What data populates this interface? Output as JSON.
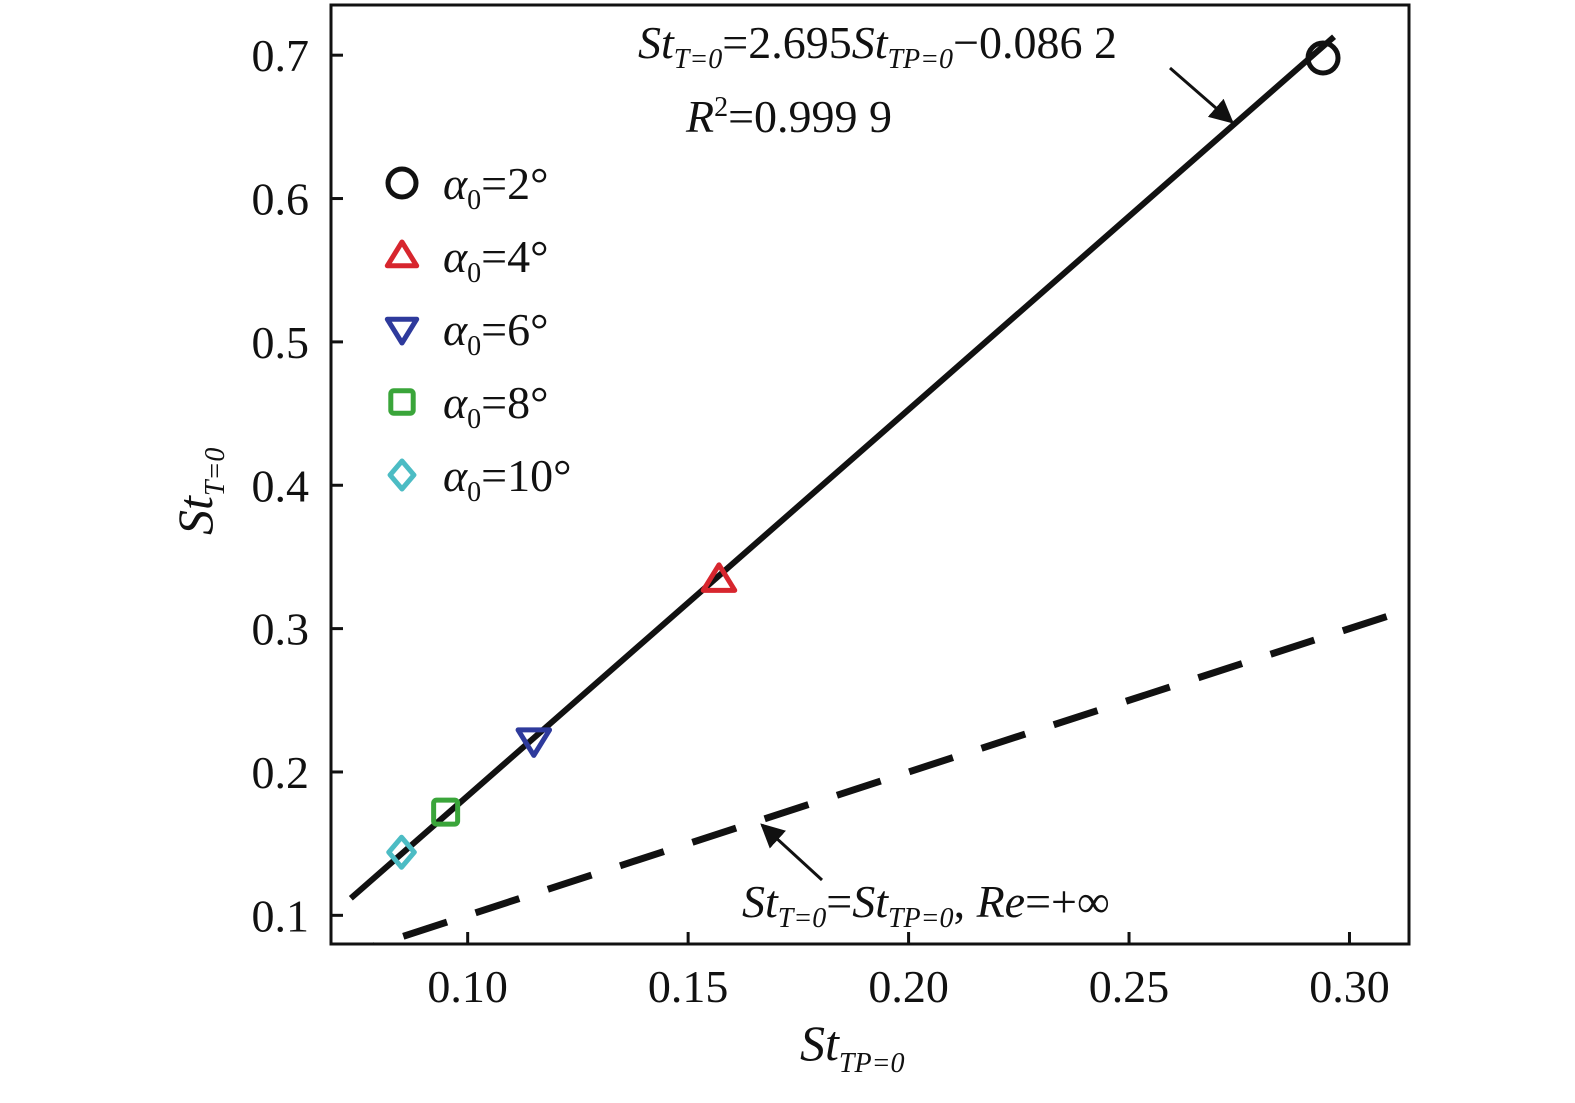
{
  "chart_data": {
    "type": "scatter",
    "x_axis": {
      "label_main": "St",
      "label_sub": "TP=0",
      "range": [
        0.069,
        0.3135
      ],
      "ticks": [
        0.1,
        0.15,
        0.2,
        0.25,
        0.3
      ],
      "tick_labels": [
        "0.10",
        "0.15",
        "0.20",
        "0.25",
        "0.30"
      ]
    },
    "y_axis": {
      "label_main": "St",
      "label_sub": "T=0",
      "range": [
        0.08,
        0.735
      ],
      "ticks": [
        0.1,
        0.2,
        0.3,
        0.4,
        0.5,
        0.6,
        0.7
      ],
      "tick_labels": [
        "0.1",
        "0.2",
        "0.3",
        "0.4",
        "0.5",
        "0.6",
        "0.7"
      ]
    },
    "grid": false,
    "legend_position": "upper-left",
    "series": [
      {
        "name_main": "α",
        "name_sub": "0",
        "name_rest": "=2°",
        "marker": "circle",
        "color": "#111111",
        "x": [
          0.294
        ],
        "y": [
          0.698
        ]
      },
      {
        "name_main": "α",
        "name_sub": "0",
        "name_rest": "=4°",
        "marker": "triangle-up",
        "color": "#d7262e",
        "x": [
          0.157
        ],
        "y": [
          0.334
        ]
      },
      {
        "name_main": "α",
        "name_sub": "0",
        "name_rest": "=6°",
        "marker": "triangle-down",
        "color": "#2e3a9c",
        "x": [
          0.115
        ],
        "y": [
          0.222
        ]
      },
      {
        "name_main": "α",
        "name_sub": "0",
        "name_rest": "=8°",
        "marker": "square",
        "color": "#3aa53a",
        "x": [
          0.095
        ],
        "y": [
          0.172
        ]
      },
      {
        "name_main": "α",
        "name_sub": "0",
        "name_rest": "=10°",
        "marker": "diamond",
        "color": "#4cbcc4",
        "x": [
          0.085
        ],
        "y": [
          0.144
        ]
      }
    ],
    "lines": [
      {
        "id": "fit",
        "style": "solid",
        "color": "#111111",
        "slope": 2.695,
        "intercept": -0.0862,
        "x_range": [
          0.0735,
          0.2965
        ]
      },
      {
        "id": "identity",
        "style": "dashed",
        "color": "#111111",
        "slope": 1.0,
        "intercept": 0.0,
        "x_range": [
          0.069,
          0.31
        ]
      }
    ],
    "annotations": {
      "fit_eq_a": "St",
      "fit_eq_a_sub": "T=0",
      "fit_eq_b": "=2.695",
      "fit_eq_c": "St",
      "fit_eq_c_sub": "TP=0",
      "fit_eq_d": "−0.086 2",
      "r2_main": "R",
      "r2_sup": "2",
      "r2_value": "=0.999 9",
      "ident_a": "St",
      "ident_a_sub": "T=0",
      "ident_b": "=",
      "ident_c": "St",
      "ident_c_sub": "TP=0",
      "ident_d": ", ",
      "ident_e": "Re",
      "ident_f": "=+∞"
    }
  }
}
